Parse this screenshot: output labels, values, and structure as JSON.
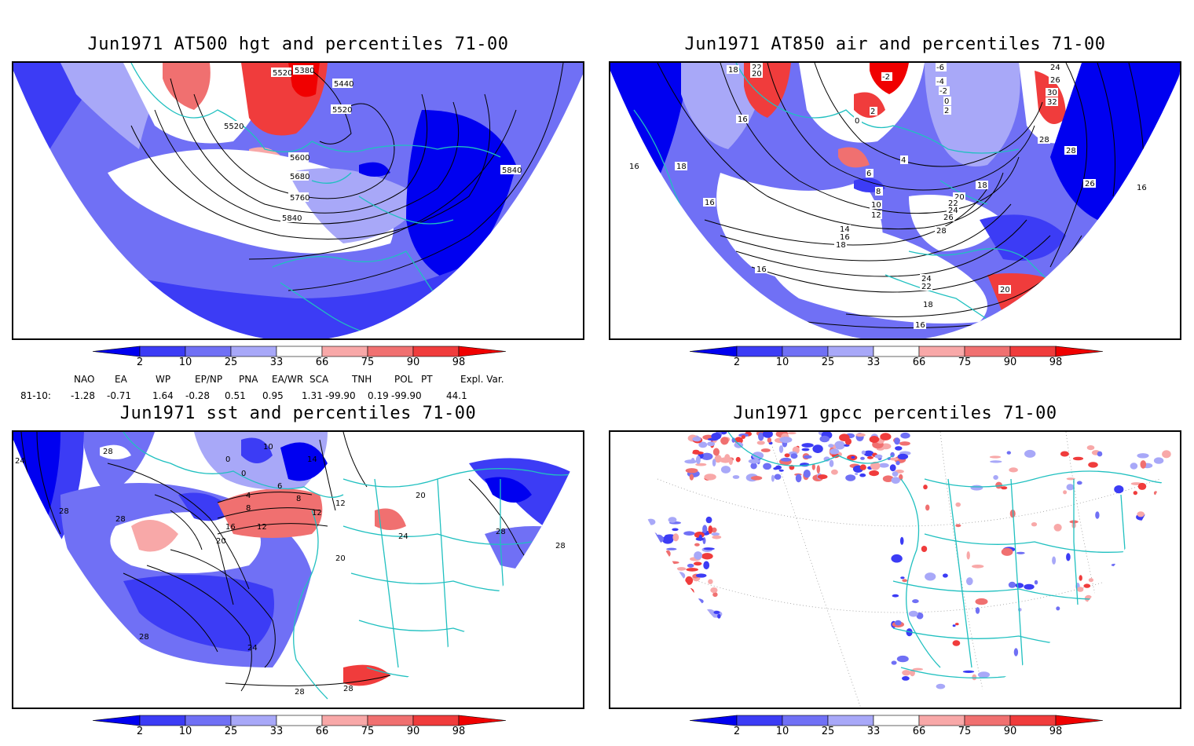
{
  "panels": [
    {
      "title": "Jun1971 AT500 hgt and percentiles 71-00",
      "contour_labels": [
        "5380",
        "5520",
        "5440",
        "5520",
        "5520",
        "5600",
        "5680",
        "5760",
        "5840",
        "5840"
      ]
    },
    {
      "title": "Jun1971 AT850 air and percentiles 71-00",
      "contour_labels": [
        "18",
        "22",
        "20",
        "16",
        "18",
        "16",
        "-2",
        "0",
        "2",
        "-6",
        "-4",
        "-2",
        "0",
        "2",
        "4",
        "6",
        "8",
        "10",
        "12",
        "14",
        "16",
        "18",
        "18",
        "20",
        "22",
        "24",
        "26",
        "28",
        "24",
        "26",
        "30",
        "32",
        "28",
        "28",
        "26",
        "16",
        "16",
        "16",
        "24",
        "22",
        "20",
        "18",
        "16"
      ]
    },
    {
      "title": "Jun1971 sst and percentiles 71-00",
      "contour_labels": [
        "24",
        "28",
        "28",
        "28",
        "0",
        "0",
        "10",
        "14",
        "6",
        "4",
        "8",
        "8",
        "12",
        "16",
        "20",
        "12",
        "12",
        "20",
        "24",
        "20",
        "28",
        "28",
        "24",
        "28",
        "28",
        "28"
      ]
    },
    {
      "title": "Jun1971 gpcc percentiles 71-00",
      "contour_labels": []
    }
  ],
  "colorbar": {
    "ticks": [
      "2",
      "10",
      "25",
      "33",
      "66",
      "75",
      "90",
      "98"
    ],
    "colors": [
      "#0000f0",
      "#3c3cf5",
      "#7070f5",
      "#a8a8f8",
      "#ffffff",
      "#f8a8a8",
      "#f07070",
      "#f03c3c",
      "#f00000"
    ]
  },
  "teleconnections": {
    "headers": [
      "NAO",
      "EA",
      "WP",
      "EP/NP",
      "PNA",
      "EA/WR",
      "SCA",
      "TNH",
      "POL",
      "PT",
      "Expl. Var."
    ],
    "row_label": "81-10:",
    "values": [
      "-1.28",
      "-0.71",
      "1.64",
      "-0.28",
      "0.51",
      "0.95",
      "1.31",
      "-99.90",
      "0.19",
      "-99.90",
      "44.1"
    ]
  },
  "colors": {
    "coastline": "#20c0c0",
    "strong_blue": "#0000f0",
    "mid_blue": "#7070f5",
    "strong_red": "#f00000",
    "mid_red": "#f07070"
  }
}
